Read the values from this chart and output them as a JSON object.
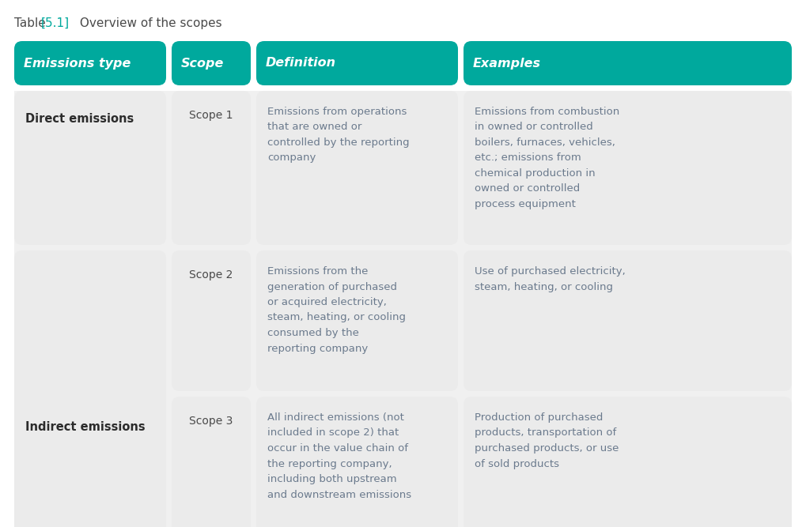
{
  "title_plain": "Table ",
  "title_bracket": "[5.1]",
  "title_rest": " Overview of the scopes",
  "title_plain_color": "#4a4a4a",
  "title_bracket_color": "#00a99d",
  "header_bg_color": "#00a99d",
  "header_text_color": "#ffffff",
  "cell_bg_color": "#ebebeb",
  "outer_bg_color": "#f0f0f0",
  "body_text_color": "#6b7a8d",
  "bold_text_color": "#2b2b2b",
  "scope_text_color": "#4a4a4a",
  "figure_bg": "#ffffff",
  "col_headers": [
    "Emissions type",
    "Scope",
    "Definition",
    "Examples"
  ],
  "col_header_align": [
    "left",
    "left",
    "left",
    "left"
  ],
  "rows": [
    {
      "emissions_type": "Direct emissions",
      "scope": "Scope 1",
      "definition": "Emissions from operations\nthat are owned or\ncontrolled by the reporting\ncompany",
      "examples": "Emissions from combustion\nin owned or controlled\nboilers, furnaces, vehicles,\netc.; emissions from\nchemical production in\nowned or controlled\nprocess equipment"
    },
    {
      "emissions_type": "Indirect emissions",
      "scope": "Scope 2",
      "definition": "Emissions from the\ngeneration of purchased\nor acquired electricity,\nsteam, heating, or cooling\nconsumed by the\nreporting company",
      "examples": "Use of purchased electricity,\nsteam, heating, or cooling"
    },
    {
      "emissions_type": "",
      "scope": "Scope 3",
      "definition": "All indirect emissions (not\nincluded in scope 2) that\noccur in the value chain of\nthe reporting company,\nincluding both upstream\nand downstream emissions",
      "examples": "Production of purchased\nproducts, transportation of\npurchased products, or use\nof sold products"
    }
  ]
}
